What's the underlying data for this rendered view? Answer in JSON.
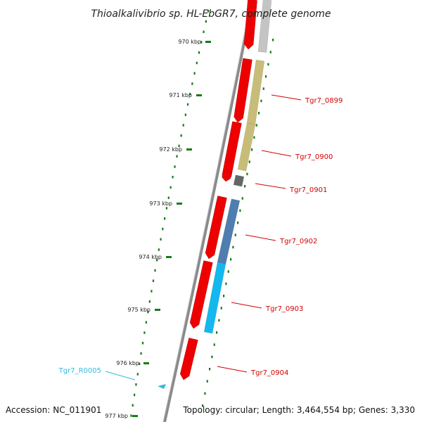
{
  "title": "Thioalkalivibrio sp. HL-EbGR7, complete genome",
  "footer": {
    "accession": "Accession: NC_011901",
    "stats": "Topology: circular; Length: 3,464,554 bp; Genes: 3,330"
  },
  "ticks": [
    "970 kbp",
    "971 kbp",
    "972 kbp",
    "973 kbp",
    "974 kbp",
    "975 kbp",
    "976 kbp",
    "977 kbp"
  ],
  "gene_labels": [
    {
      "text": "Tgr7_0899",
      "color": "#d40000"
    },
    {
      "text": "Tgr7_0900",
      "color": "#d40000"
    },
    {
      "text": "Tgr7_0901",
      "color": "#d40000"
    },
    {
      "text": "Tgr7_0902",
      "color": "#d40000"
    },
    {
      "text": "Tgr7_0903",
      "color": "#d40000"
    },
    {
      "text": "Tgr7_0904",
      "color": "#d40000"
    },
    {
      "text": "Tgr7_R0005",
      "color": "#33bbdd"
    }
  ],
  "colors": {
    "cds": "#ee0000",
    "tick": "#1a7a1a",
    "backbone": "#8a8a8a",
    "blast_gray": "#c4c4c4",
    "blast_tan": "#c8bd78",
    "blast_dark": "#666666",
    "blast_steel": "#4f7db0",
    "blast_cyan": "#12b8ee",
    "rna": "#33bbdd"
  }
}
